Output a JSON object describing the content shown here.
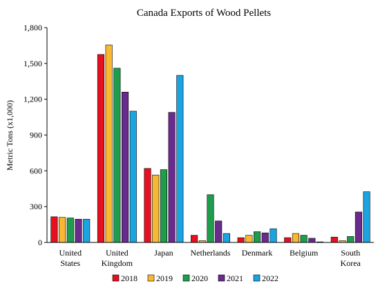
{
  "chart_data": {
    "type": "bar",
    "title": "Canada Exports of Wood Pellets",
    "xlabel": "",
    "ylabel": "Metric Tons (x1,000)",
    "ylim": [
      0,
      1800
    ],
    "yticks": [
      "0",
      "300",
      "600",
      "900",
      "1,200",
      "1,500",
      "1,800"
    ],
    "ytick_values": [
      0,
      300,
      600,
      900,
      1200,
      1500,
      1800
    ],
    "grid": false,
    "legend_position": "bottom",
    "categories": [
      [
        "United",
        "States"
      ],
      [
        "United",
        "Kingdom"
      ],
      [
        "Japan"
      ],
      [
        "Netherlands"
      ],
      [
        "Denmark"
      ],
      [
        "Belgium"
      ],
      [
        "South",
        "Korea"
      ]
    ],
    "series": [
      {
        "name": "2018",
        "color": "#e8101e",
        "values": [
          215,
          1575,
          620,
          60,
          40,
          40,
          45
        ]
      },
      {
        "name": "2019",
        "color": "#f9b82f",
        "values": [
          210,
          1655,
          565,
          15,
          60,
          75,
          15
        ]
      },
      {
        "name": "2020",
        "color": "#1f9d4c",
        "values": [
          205,
          1460,
          610,
          400,
          90,
          60,
          50
        ]
      },
      {
        "name": "2021",
        "color": "#6a2b8e",
        "values": [
          195,
          1260,
          1090,
          180,
          80,
          35,
          255
        ]
      },
      {
        "name": "2022",
        "color": "#1ba4e2",
        "values": [
          195,
          1100,
          1400,
          75,
          115,
          5,
          425
        ]
      }
    ]
  }
}
